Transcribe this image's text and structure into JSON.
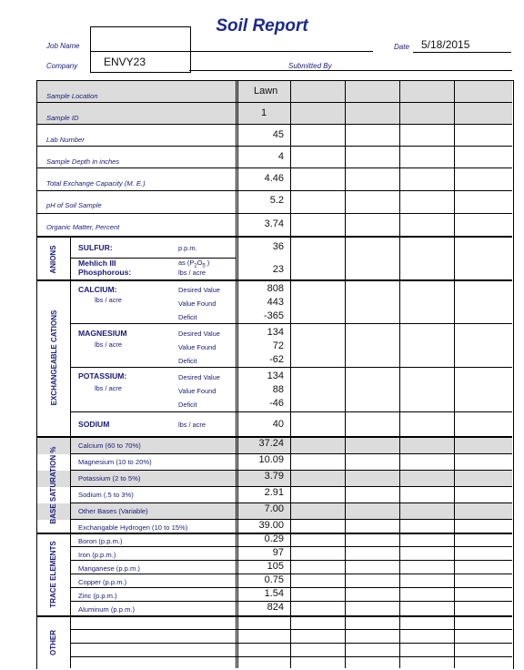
{
  "header": {
    "title": "Soil Report",
    "job_name_label": "Job Name",
    "company_label": "Company",
    "company_value": "ENVY23",
    "date_label": "Date",
    "date_value": "5/18/2015",
    "submitted_by_label": "Submitted By"
  },
  "basic": [
    {
      "label": "Sample Location",
      "value": "Lawn"
    },
    {
      "label": "Sample ID",
      "value": "1"
    },
    {
      "label": "Lab Number",
      "value": "45"
    },
    {
      "label": "Sample Depth in inches",
      "value": "4"
    },
    {
      "label": "Total Exchange Capacity (M. E.)",
      "value": "4.46"
    },
    {
      "label": "pH of Soil Sample",
      "value": "5.2"
    },
    {
      "label": "Organic Matter, Percent",
      "value": "3.74"
    }
  ],
  "anions": {
    "section": "ANIONS",
    "sulfur": {
      "label": "SULFUR:",
      "unit": "p.p.m.",
      "value": "36"
    },
    "phos": {
      "label1": "Mehlich III",
      "label2": "Phosphorous:",
      "unit1": "as (P",
      "unit_sub1": "2",
      "unit_mid": "O",
      "unit_sub2": "5",
      "unit_end": " )",
      "unit2": "lbs / acre",
      "value": "23"
    }
  },
  "cations": {
    "section": "EXCHANGEABLE CATIONS",
    "calcium": {
      "label": "CALCIUM:",
      "sub": "lbs / acre",
      "l1": "Desired Value",
      "l2": "Value Found",
      "l3": "Deficit",
      "v1": "808",
      "v2": "443",
      "v3": "-365"
    },
    "magnesium": {
      "label": "MAGNESIUM",
      "sub": "lbs / acre",
      "l1": "Desired Value",
      "l2": "Value Found",
      "l3": "Deficit",
      "v1": "134",
      "v2": "72",
      "v3": "-62"
    },
    "potassium": {
      "label": "POTASSIUM:",
      "sub": "lbs / acre",
      "l1": "Desired Value",
      "l2": "Value Found",
      "l3": "Deficit",
      "v1": "134",
      "v2": "88",
      "v3": "-46"
    },
    "sodium": {
      "label": "SODIUM",
      "unit": "lbs / acre",
      "value": "40"
    }
  },
  "base_saturation": {
    "section": "BASE SATURATION %",
    "rows": [
      {
        "label": "Calcium (60 to 70%)",
        "value": "37.24"
      },
      {
        "label": "Magnesium (10 to 20%)",
        "value": "10.09"
      },
      {
        "label": "Potassium (2 to 5%)",
        "value": "3.79"
      },
      {
        "label": "Sodium (.5 to 3%)",
        "value": "2.91"
      },
      {
        "label": "Other Bases (Variable)",
        "value": "7.00"
      },
      {
        "label": "Exchangable Hydrogen (10 to 15%)",
        "value": "39.00"
      }
    ]
  },
  "trace": {
    "section": "TRACE ELEMENTS",
    "rows": [
      {
        "label": "Boron (p.p.m.)",
        "value": "0.29"
      },
      {
        "label": "Iron (p.p.m.)",
        "value": "97"
      },
      {
        "label": "Manganese (p.p.m.)",
        "value": "105"
      },
      {
        "label": "Copper (p.p.m.)",
        "value": "0.75"
      },
      {
        "label": "Zinc (p.p.m.)",
        "value": "1.54"
      },
      {
        "label": "Aluminum (p.p.m.)",
        "value": "824"
      }
    ]
  },
  "other": {
    "section": "OTHER"
  }
}
